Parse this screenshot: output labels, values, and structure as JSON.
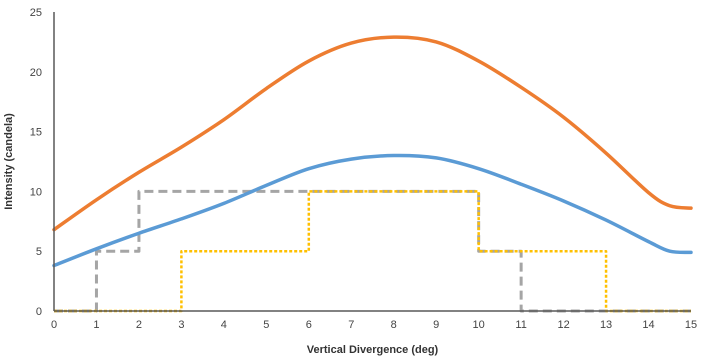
{
  "chart_data": {
    "type": "line",
    "title": "",
    "xlabel": "Vertical Divergence (deg)",
    "ylabel": "Intensity (candela)",
    "xlim": [
      0,
      15
    ],
    "ylim": [
      0,
      25
    ],
    "x_ticks": [
      "0",
      "1",
      "2",
      "3",
      "4",
      "5",
      "6",
      "7",
      "8",
      "9",
      "10",
      "11",
      "12",
      "13",
      "14",
      "15"
    ],
    "y_ticks": [
      "0",
      "5",
      "10",
      "15",
      "20",
      "25"
    ],
    "grid": false,
    "legend": "none",
    "series": [
      {
        "color": "#ED7D31",
        "style": "solid",
        "points": [
          [
            0,
            6.8
          ],
          [
            1,
            9.3
          ],
          [
            2,
            11.6
          ],
          [
            3,
            13.7
          ],
          [
            4,
            16
          ],
          [
            5,
            18.6
          ],
          [
            6,
            20.9
          ],
          [
            7,
            22.4
          ],
          [
            8,
            22.9
          ],
          [
            9,
            22.5
          ],
          [
            10,
            20.9
          ],
          [
            11,
            18.7
          ],
          [
            12,
            16.2
          ],
          [
            13,
            13.2
          ],
          [
            14,
            9.9
          ],
          [
            14.5,
            8.8
          ],
          [
            15,
            8.6
          ]
        ]
      },
      {
        "color": "#5B9BD5",
        "style": "solid",
        "points": [
          [
            0,
            3.8
          ],
          [
            1,
            5.2
          ],
          [
            2,
            6.5
          ],
          [
            3,
            7.7
          ],
          [
            4,
            9
          ],
          [
            5,
            10.5
          ],
          [
            6,
            11.9
          ],
          [
            7,
            12.7
          ],
          [
            8,
            13
          ],
          [
            9,
            12.8
          ],
          [
            10,
            11.9
          ],
          [
            11,
            10.6
          ],
          [
            12,
            9.2
          ],
          [
            13,
            7.6
          ],
          [
            14,
            5.8
          ],
          [
            14.5,
            5
          ],
          [
            15,
            4.9
          ]
        ]
      },
      {
        "color": "#A5A5A5",
        "style": "dashed",
        "points": [
          [
            0,
            0
          ],
          [
            1,
            0
          ],
          [
            1,
            5
          ],
          [
            2,
            5
          ],
          [
            2,
            10
          ],
          [
            10,
            10
          ],
          [
            10,
            5
          ],
          [
            11,
            5
          ],
          [
            11,
            0
          ],
          [
            15,
            0
          ]
        ]
      },
      {
        "color": "#FFC000",
        "style": "dotted",
        "points": [
          [
            0,
            0
          ],
          [
            3,
            0
          ],
          [
            3,
            5
          ],
          [
            6,
            5
          ],
          [
            6,
            10
          ],
          [
            10,
            10
          ],
          [
            10,
            5
          ],
          [
            13,
            5
          ],
          [
            13,
            0
          ],
          [
            15,
            0
          ]
        ]
      }
    ]
  }
}
